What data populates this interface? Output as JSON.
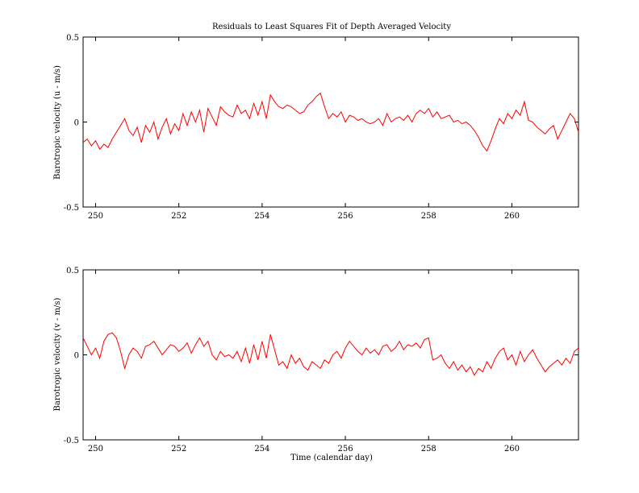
{
  "chart_data": [
    {
      "type": "line",
      "title": "Residuals to Least Squares Fit of Depth Averaged Velocity",
      "xlabel": "",
      "ylabel": "Barotropic velocity (u - m/s)",
      "xlim": [
        249.7,
        261.6
      ],
      "ylim": [
        -0.5,
        0.5
      ],
      "xticks": [
        250,
        252,
        254,
        256,
        258,
        260
      ],
      "yticks": [
        -0.5,
        0,
        0.5
      ],
      "ytick_labels": [
        "-0.5",
        "0",
        "0.5"
      ],
      "grid": false,
      "line_color": "#ff0000",
      "series": [
        {
          "x": [
            249.7,
            249.8,
            249.9,
            250.0,
            250.1,
            250.2,
            250.3,
            250.4,
            250.5,
            250.6,
            250.7,
            250.8,
            250.9,
            251.0,
            251.1,
            251.2,
            251.3,
            251.4,
            251.5,
            251.6,
            251.7,
            251.8,
            251.9,
            252.0,
            252.1,
            252.2,
            252.3,
            252.4,
            252.5,
            252.6,
            252.7,
            252.8,
            252.9,
            253.0,
            253.1,
            253.2,
            253.3,
            253.4,
            253.5,
            253.6,
            253.7,
            253.8,
            253.9,
            254.0,
            254.1,
            254.2,
            254.3,
            254.4,
            254.5,
            254.6,
            254.7,
            254.8,
            254.9,
            255.0,
            255.1,
            255.2,
            255.3,
            255.4,
            255.5,
            255.6,
            255.7,
            255.8,
            255.9,
            256.0,
            256.1,
            256.2,
            256.3,
            256.4,
            256.5,
            256.6,
            256.7,
            256.8,
            256.9,
            257.0,
            257.1,
            257.2,
            257.3,
            257.4,
            257.5,
            257.6,
            257.7,
            257.8,
            257.9,
            258.0,
            258.1,
            258.2,
            258.3,
            258.4,
            258.5,
            258.6,
            258.7,
            258.8,
            258.9,
            259.0,
            259.1,
            259.2,
            259.3,
            259.4,
            259.5,
            259.6,
            259.7,
            259.8,
            259.9,
            260.0,
            260.1,
            260.2,
            260.3,
            260.4,
            260.5,
            260.6,
            260.7,
            260.8,
            260.9,
            261.0,
            261.1,
            261.2,
            261.3,
            261.4,
            261.5,
            261.6
          ],
          "y": [
            -0.12,
            -0.1,
            -0.14,
            -0.11,
            -0.16,
            -0.13,
            -0.15,
            -0.1,
            -0.06,
            -0.02,
            0.02,
            -0.05,
            -0.08,
            -0.03,
            -0.12,
            -0.02,
            -0.06,
            0.0,
            -0.1,
            -0.03,
            0.02,
            -0.07,
            -0.01,
            -0.05,
            0.05,
            -0.02,
            0.06,
            0.0,
            0.07,
            -0.06,
            0.08,
            0.03,
            -0.02,
            0.09,
            0.06,
            0.04,
            0.03,
            0.1,
            0.05,
            0.07,
            0.02,
            0.11,
            0.04,
            0.12,
            0.02,
            0.16,
            0.12,
            0.09,
            0.08,
            0.1,
            0.09,
            0.07,
            0.05,
            0.06,
            0.1,
            0.12,
            0.15,
            0.17,
            0.09,
            0.02,
            0.05,
            0.03,
            0.06,
            0.0,
            0.04,
            0.03,
            0.01,
            0.02,
            0.0,
            -0.01,
            0.0,
            0.02,
            -0.02,
            0.05,
            0.0,
            0.02,
            0.03,
            0.01,
            0.04,
            0.0,
            0.05,
            0.07,
            0.05,
            0.08,
            0.03,
            0.06,
            0.02,
            0.03,
            0.04,
            0.0,
            0.01,
            -0.01,
            0.0,
            -0.02,
            -0.05,
            -0.09,
            -0.14,
            -0.17,
            -0.11,
            -0.04,
            0.02,
            -0.01,
            0.05,
            0.02,
            0.07,
            0.04,
            0.12,
            0.01,
            0.0,
            -0.03,
            -0.05,
            -0.07,
            -0.04,
            -0.02,
            -0.1,
            -0.05,
            0.0,
            0.05,
            0.02,
            -0.06
          ]
        }
      ]
    },
    {
      "type": "line",
      "title": "",
      "xlabel": "Time (calendar day)",
      "ylabel": "Barotropic velocity (v - m/s)",
      "xlim": [
        249.7,
        261.6
      ],
      "ylim": [
        -0.5,
        0.5
      ],
      "xticks": [
        250,
        252,
        254,
        256,
        258,
        260
      ],
      "yticks": [
        -0.5,
        0,
        0.5
      ],
      "ytick_labels": [
        "-0.5",
        "0",
        "0.5"
      ],
      "grid": false,
      "line_color": "#ff0000",
      "series": [
        {
          "x": [
            249.7,
            249.8,
            249.9,
            250.0,
            250.1,
            250.2,
            250.3,
            250.4,
            250.5,
            250.6,
            250.7,
            250.8,
            250.9,
            251.0,
            251.1,
            251.2,
            251.3,
            251.4,
            251.5,
            251.6,
            251.7,
            251.8,
            251.9,
            252.0,
            252.1,
            252.2,
            252.3,
            252.4,
            252.5,
            252.6,
            252.7,
            252.8,
            252.9,
            253.0,
            253.1,
            253.2,
            253.3,
            253.4,
            253.5,
            253.6,
            253.7,
            253.8,
            253.9,
            254.0,
            254.1,
            254.2,
            254.3,
            254.4,
            254.5,
            254.6,
            254.7,
            254.8,
            254.9,
            255.0,
            255.1,
            255.2,
            255.3,
            255.4,
            255.5,
            255.6,
            255.7,
            255.8,
            255.9,
            256.0,
            256.1,
            256.2,
            256.3,
            256.4,
            256.5,
            256.6,
            256.7,
            256.8,
            256.9,
            257.0,
            257.1,
            257.2,
            257.3,
            257.4,
            257.5,
            257.6,
            257.7,
            257.8,
            257.9,
            258.0,
            258.1,
            258.2,
            258.3,
            258.4,
            258.5,
            258.6,
            258.7,
            258.8,
            258.9,
            259.0,
            259.1,
            259.2,
            259.3,
            259.4,
            259.5,
            259.6,
            259.7,
            259.8,
            259.9,
            260.0,
            260.1,
            260.2,
            260.3,
            260.4,
            260.5,
            260.6,
            260.7,
            260.8,
            260.9,
            261.0,
            261.1,
            261.2,
            261.3,
            261.4,
            261.5,
            261.6
          ],
          "y": [
            0.1,
            0.05,
            0.0,
            0.04,
            -0.02,
            0.08,
            0.12,
            0.13,
            0.1,
            0.02,
            -0.08,
            0.0,
            0.04,
            0.02,
            -0.02,
            0.05,
            0.06,
            0.08,
            0.04,
            0.0,
            0.03,
            0.06,
            0.05,
            0.02,
            0.04,
            0.07,
            0.01,
            0.06,
            0.1,
            0.05,
            0.08,
            0.0,
            -0.03,
            0.02,
            -0.01,
            0.0,
            -0.02,
            0.02,
            -0.04,
            0.04,
            -0.05,
            0.06,
            -0.03,
            0.08,
            -0.02,
            0.12,
            0.03,
            -0.06,
            -0.04,
            -0.08,
            0.0,
            -0.05,
            -0.02,
            -0.07,
            -0.09,
            -0.04,
            -0.06,
            -0.08,
            -0.03,
            -0.05,
            0.0,
            0.02,
            -0.02,
            0.04,
            0.08,
            0.05,
            0.02,
            0.0,
            0.04,
            0.01,
            0.03,
            0.0,
            0.05,
            0.06,
            0.02,
            0.04,
            0.08,
            0.03,
            0.06,
            0.05,
            0.07,
            0.04,
            0.09,
            0.1,
            -0.03,
            -0.02,
            0.0,
            -0.05,
            -0.08,
            -0.04,
            -0.09,
            -0.06,
            -0.1,
            -0.07,
            -0.12,
            -0.08,
            -0.1,
            -0.04,
            -0.08,
            -0.02,
            0.02,
            0.04,
            -0.03,
            0.0,
            -0.06,
            0.02,
            -0.04,
            0.0,
            0.03,
            -0.02,
            -0.06,
            -0.1,
            -0.07,
            -0.05,
            -0.03,
            -0.06,
            -0.02,
            -0.05,
            0.02,
            0.04
          ]
        }
      ]
    }
  ]
}
